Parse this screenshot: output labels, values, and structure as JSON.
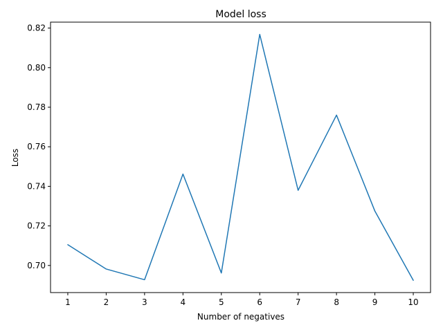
{
  "chart_data": {
    "type": "line",
    "title": "Model loss",
    "xlabel": "Number of negatives",
    "ylabel": "Loss",
    "x": [
      1,
      2,
      3,
      4,
      5,
      6,
      7,
      8,
      9,
      10
    ],
    "series": [
      {
        "values": [
          0.7105,
          0.6982,
          0.6928,
          0.7462,
          0.6962,
          0.8168,
          0.738,
          0.776,
          0.7275,
          0.6925
        ],
        "color": "#1f77b4"
      }
    ],
    "xticks": [
      "1",
      "2",
      "3",
      "4",
      "5",
      "6",
      "7",
      "8",
      "9",
      "10"
    ],
    "yticks": [
      "0.70",
      "0.72",
      "0.74",
      "0.76",
      "0.78",
      "0.80",
      "0.82"
    ],
    "xlim": [
      0.55,
      10.45
    ],
    "ylim": [
      0.6863,
      0.823
    ],
    "grid": false,
    "legend": "none"
  }
}
